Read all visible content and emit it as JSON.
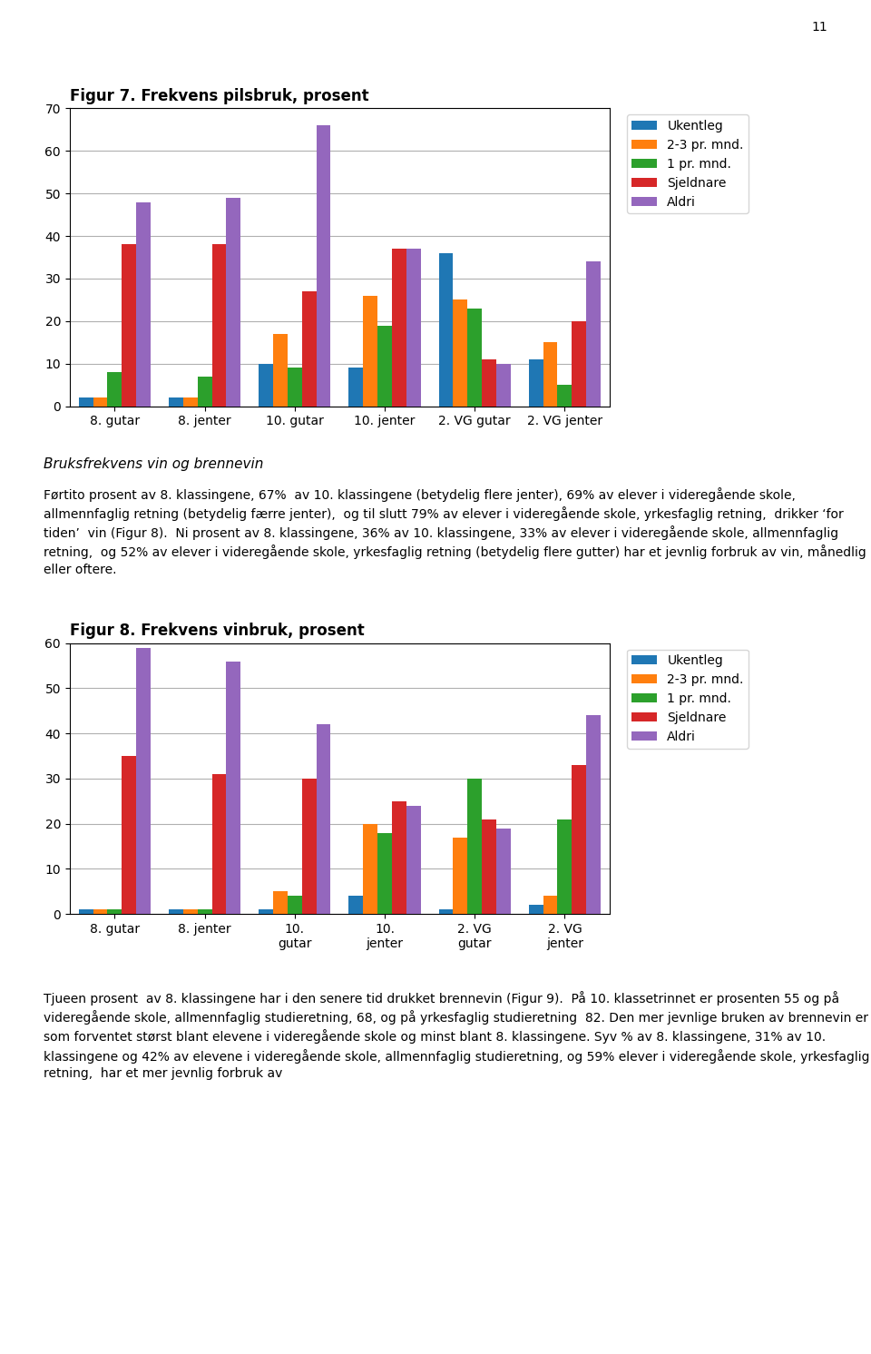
{
  "chart_data": [
    {
      "type": "bar",
      "title": "Figur 7. Frekvens pilsbruk, prosent",
      "categories": [
        "8. gutar",
        "8. jenter",
        "10. gutar",
        "10. jenter",
        "2. VG gutar",
        "2. VG jenter"
      ],
      "series": [
        {
          "name": "Ukentleg",
          "values": [
            2,
            2,
            10,
            9,
            36,
            11
          ]
        },
        {
          "name": "2-3 pr. mnd.",
          "values": [
            2,
            2,
            17,
            26,
            25,
            15
          ]
        },
        {
          "name": "1 pr. mnd.",
          "values": [
            8,
            7,
            9,
            19,
            23,
            5
          ]
        },
        {
          "name": "Sjeldnare",
          "values": [
            38,
            38,
            27,
            37,
            11,
            20
          ]
        },
        {
          "name": "Aldri",
          "values": [
            48,
            49,
            66,
            37,
            10,
            34
          ]
        }
      ],
      "ylim": [
        0,
        70
      ],
      "yticks": [
        0,
        10,
        20,
        30,
        40,
        50,
        60,
        70
      ],
      "grid": true,
      "legend": "upper right"
    },
    {
      "type": "bar",
      "title": "Figur 8. Frekvens vinbruk, prosent",
      "categories": [
        "8. gutar",
        "8. jenter",
        "10.\ngutar",
        "10.\njenter",
        "2. VG\ngutar",
        "2. VG\njenter"
      ],
      "series": [
        {
          "name": "Ukentleg",
          "values": [
            1,
            1,
            1,
            4,
            1,
            2
          ]
        },
        {
          "name": "2-3 pr. mnd.",
          "values": [
            1,
            1,
            5,
            20,
            17,
            4
          ]
        },
        {
          "name": "1 pr. mnd.",
          "values": [
            1,
            1,
            4,
            18,
            30,
            21
          ]
        },
        {
          "name": "Sjeldnare",
          "values": [
            35,
            31,
            30,
            25,
            21,
            33
          ]
        },
        {
          "name": "Aldri",
          "values": [
            59,
            56,
            42,
            24,
            19,
            44
          ]
        }
      ],
      "ylim": [
        0,
        60
      ],
      "yticks": [
        0,
        10,
        20,
        30,
        40,
        50,
        60
      ],
      "grid": true,
      "legend": "upper right"
    }
  ],
  "annotations": [
    "11",
    "Bruksfrekvens vin og brennevin",
    "Førtito prosent av 8. klassingene, 67%  av 10. klassingene (betydelig flere jenter), 69% av elever i videregående skole, allmennfaglig retning (betydelig færre jenter),  og til slutt 79% av elever i videregående skole, yrkesfaglig retning,  drikker ‘for tiden’  vin (Figur 8).  Ni prosent av 8. klassingene, 36% av 10. klassingene, 33% av elever i videregående skole, allmennfaglig retning,  og 52% av elever i videregående skole, yrkesfaglig retning (betydelig flere gutter) har et jevnlig forbruk av vin, månedlig eller oftere.",
    "Tjueen prosent  av 8. klassingene har i den senere tid drukket brennevin (Figur 9).  På 10. klassetrinnet er prosenten 55 og på videregående skole, allmennfaglig studieretning, 68, og på yrkesfaglig studieretning  82. Den mer jevnlige bruken av brennevin er som forventet størst blant elevene i videregående skole og minst blant 8. klassingene. Syv % av 8. klassingene, 31% av 10. klassingene og 42% av elevene i videregående skole, allmennfaglig studieretning, og 59% elever i videregående skole, yrkesfaglig retning,  har et mer jevnlig forbruk av"
  ]
}
